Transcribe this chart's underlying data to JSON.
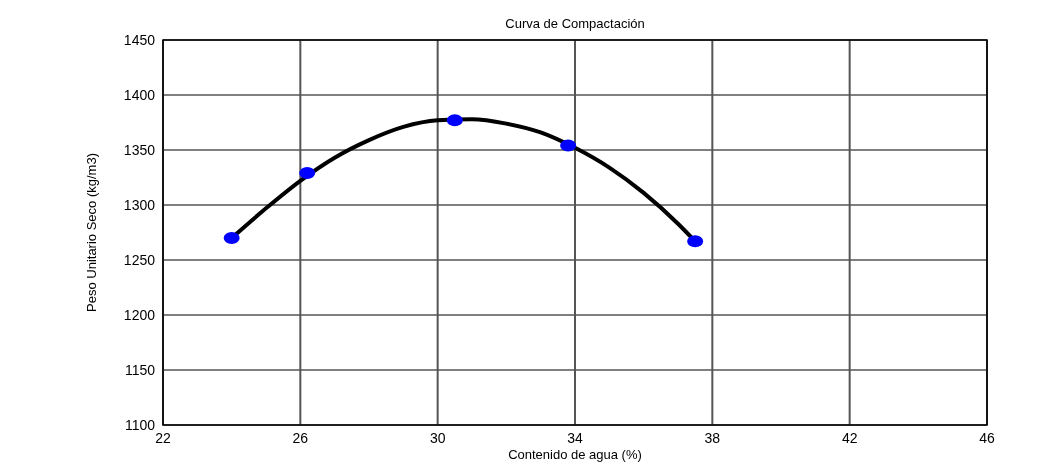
{
  "chart_data": {
    "type": "scatter",
    "title": "Curva de Compactación",
    "xlabel": "Contenido de agua (%)",
    "ylabel": "Peso Unitario Seco (kg/m3)",
    "xlim": [
      22,
      46
    ],
    "xticks": [
      22,
      26,
      30,
      34,
      38,
      42,
      46
    ],
    "ylim": [
      1100,
      1450
    ],
    "yticks": [
      1100,
      1150,
      1200,
      1250,
      1300,
      1350,
      1400,
      1450
    ],
    "grid": true,
    "marker": "circle",
    "series": [
      {
        "type": "line",
        "color": "#000000",
        "marker": "none",
        "x": [
          24,
          25,
          26,
          27,
          28,
          29,
          30,
          31,
          32,
          33,
          34,
          35,
          36,
          37,
          37.5
        ],
        "values": [
          1270,
          1297,
          1322,
          1343,
          1359,
          1371,
          1377,
          1378,
          1374,
          1366,
          1352,
          1334,
          1311,
          1283,
          1267
        ]
      },
      {
        "color": "#0000ff",
        "x": [
          24,
          26.2,
          30.5,
          33.8,
          37.5
        ],
        "values": [
          1270,
          1329,
          1377,
          1354,
          1267
        ]
      }
    ]
  }
}
